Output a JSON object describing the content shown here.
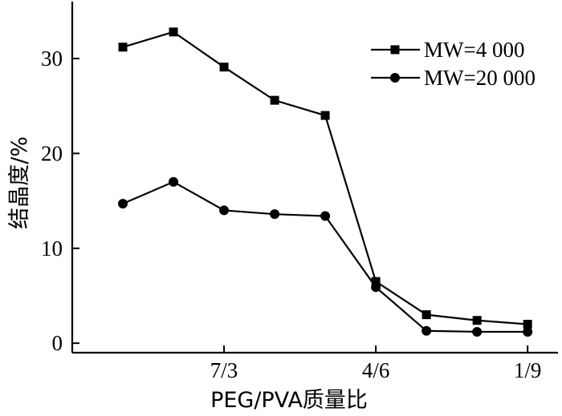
{
  "chart_data": {
    "type": "line",
    "xlabel": "PEG/PVA质量比",
    "ylabel": "结晶度/%",
    "x": [
      1,
      2,
      3,
      4,
      5,
      6,
      7,
      8,
      9
    ],
    "xticks": [
      {
        "x": 3,
        "label": "7/3"
      },
      {
        "x": 6,
        "label": "4/6"
      },
      {
        "x": 9,
        "label": "1/9"
      }
    ],
    "xlim": [
      0,
      9.6
    ],
    "ylim": [
      -1,
      36
    ],
    "yticks": [
      0,
      10,
      20,
      30
    ],
    "grid": false,
    "legend": "top-right",
    "series": [
      {
        "name": "MW=4 000",
        "marker": "square",
        "values": [
          31.2,
          32.8,
          29.1,
          25.6,
          24.0,
          6.5,
          3.0,
          2.4,
          2.0
        ]
      },
      {
        "name": "MW=20 000",
        "marker": "circle",
        "values": [
          14.7,
          17.0,
          14.0,
          13.6,
          13.4,
          5.9,
          1.3,
          1.2,
          1.2
        ]
      }
    ]
  }
}
